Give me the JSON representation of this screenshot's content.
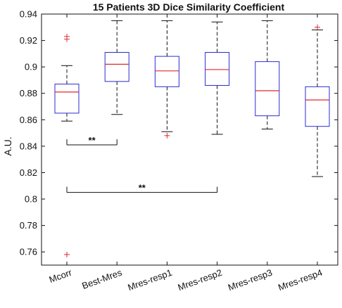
{
  "chart_data": {
    "type": "box",
    "title": "15 Patients 3D Dice Similarity Coefficient",
    "ylabel": "A.U.",
    "xlabel": "",
    "ylim": [
      0.75,
      0.94
    ],
    "yticks": [
      "0.76",
      "0.78",
      "0.8",
      "0.82",
      "0.84",
      "0.86",
      "0.88",
      "0.9",
      "0.92",
      "0.94"
    ],
    "categories": [
      "Mcorr",
      "Best-Mres",
      "Mres-resp1",
      "Mres-resp2",
      "Mres-resp3",
      "Mres-resp4"
    ],
    "boxes": [
      {
        "whisker_low": 0.859,
        "q1": 0.865,
        "median": 0.881,
        "q3": 0.887,
        "whisker_high": 0.901,
        "outliers": [
          0.921,
          0.923,
          0.758
        ]
      },
      {
        "whisker_low": 0.864,
        "q1": 0.889,
        "median": 0.902,
        "q3": 0.911,
        "whisker_high": 0.935,
        "outliers": []
      },
      {
        "whisker_low": 0.851,
        "q1": 0.885,
        "median": 0.897,
        "q3": 0.908,
        "whisker_high": 0.935,
        "outliers": [
          0.848
        ]
      },
      {
        "whisker_low": 0.849,
        "q1": 0.886,
        "median": 0.898,
        "q3": 0.911,
        "whisker_high": 0.934,
        "outliers": []
      },
      {
        "whisker_low": 0.853,
        "q1": 0.863,
        "median": 0.882,
        "q3": 0.904,
        "whisker_high": 0.935,
        "outliers": []
      },
      {
        "whisker_low": 0.817,
        "q1": 0.855,
        "median": 0.875,
        "q3": 0.885,
        "whisker_high": 0.928,
        "outliers": [
          0.93
        ]
      }
    ],
    "significance": [
      {
        "from": "Mcorr",
        "to": "Best-Mres",
        "y": 0.841,
        "label": "**"
      },
      {
        "from": "Mcorr",
        "to": "Mres-resp2",
        "y": 0.805,
        "label": "**"
      }
    ],
    "colors": {
      "box": "#2b2bd6",
      "median": "#e0282d",
      "outlier": "#e0282d",
      "whisker": "#111111"
    },
    "grid": false
  }
}
